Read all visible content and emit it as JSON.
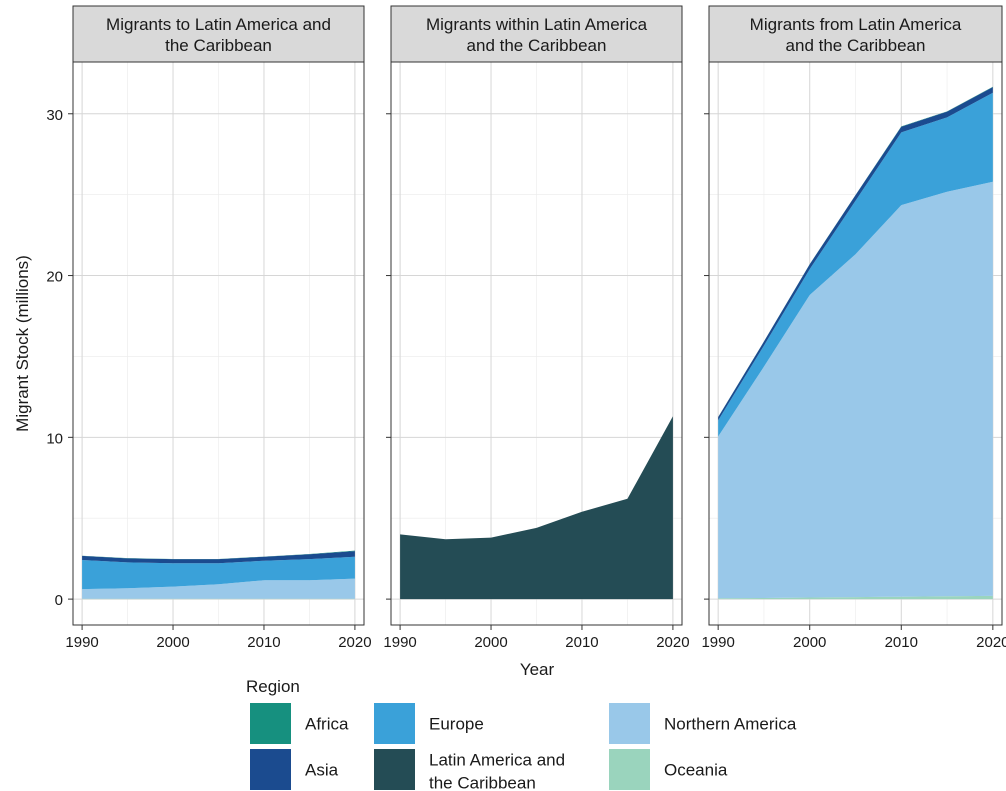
{
  "chart_data": {
    "type": "area",
    "stacked": true,
    "facets": [
      {
        "title_lines": [
          "Migrants to Latin America and",
          "the Caribbean"
        ],
        "x": [
          1990,
          1995,
          2000,
          2005,
          2010,
          2015,
          2020
        ],
        "series": [
          {
            "name": "Oceania",
            "values": [
              0.02,
              0.02,
              0.02,
              0.02,
              0.02,
              0.02,
              0.02
            ]
          },
          {
            "name": "Northern America",
            "values": [
              0.6,
              0.65,
              0.75,
              0.9,
              1.15,
              1.15,
              1.25
            ]
          },
          {
            "name": "Latin America and the Caribbean",
            "values": [
              0,
              0,
              0,
              0,
              0,
              0,
              0
            ]
          },
          {
            "name": "Europe",
            "values": [
              1.8,
              1.6,
              1.45,
              1.3,
              1.2,
              1.3,
              1.35
            ]
          },
          {
            "name": "Asia",
            "values": [
              0.25,
              0.25,
              0.25,
              0.25,
              0.25,
              0.3,
              0.35
            ]
          },
          {
            "name": "Africa",
            "values": [
              0.01,
              0.01,
              0.01,
              0.01,
              0.01,
              0.02,
              0.03
            ]
          }
        ]
      },
      {
        "title_lines": [
          "Migrants within Latin America",
          "and the Caribbean"
        ],
        "x": [
          1990,
          1995,
          2000,
          2005,
          2010,
          2015,
          2020
        ],
        "series": [
          {
            "name": "Oceania",
            "values": [
              0,
              0,
              0,
              0,
              0,
              0,
              0
            ]
          },
          {
            "name": "Northern America",
            "values": [
              0,
              0,
              0,
              0,
              0,
              0,
              0
            ]
          },
          {
            "name": "Latin America and the Caribbean",
            "values": [
              4.0,
              3.7,
              3.8,
              4.4,
              5.4,
              6.2,
              11.3
            ]
          },
          {
            "name": "Europe",
            "values": [
              0,
              0,
              0,
              0,
              0,
              0,
              0
            ]
          },
          {
            "name": "Asia",
            "values": [
              0,
              0,
              0,
              0,
              0,
              0,
              0
            ]
          },
          {
            "name": "Africa",
            "values": [
              0,
              0,
              0,
              0,
              0,
              0,
              0
            ]
          }
        ]
      },
      {
        "title_lines": [
          "Migrants from Latin America",
          "and the Caribbean"
        ],
        "x": [
          1990,
          1995,
          2000,
          2005,
          2010,
          2015,
          2020
        ],
        "series": [
          {
            "name": "Oceania",
            "values": [
              0.05,
              0.07,
              0.1,
              0.12,
              0.15,
              0.18,
              0.2
            ]
          },
          {
            "name": "Northern America",
            "values": [
              10.0,
              14.3,
              18.7,
              21.2,
              24.2,
              25.0,
              25.6
            ]
          },
          {
            "name": "Latin America and the Caribbean",
            "values": [
              0,
              0,
              0,
              0,
              0,
              0,
              0
            ]
          },
          {
            "name": "Europe",
            "values": [
              1.0,
              1.3,
              1.6,
              3.3,
              4.5,
              4.6,
              5.5
            ]
          },
          {
            "name": "Asia",
            "values": [
              0.2,
              0.25,
              0.3,
              0.35,
              0.35,
              0.35,
              0.35
            ]
          },
          {
            "name": "Africa",
            "values": [
              0.01,
              0.01,
              0.01,
              0.01,
              0.02,
              0.02,
              0.02
            ]
          }
        ]
      }
    ],
    "ylabel": "Migrant Stock (millions)",
    "xlabel": "Year",
    "ylim": [
      -1.6,
      33.2
    ],
    "xlim": [
      1989,
      2021
    ],
    "yticks": [
      0,
      10,
      20,
      30
    ],
    "xticks": [
      1990,
      2000,
      2010,
      2020
    ],
    "grid": true,
    "legend": {
      "title": "Region",
      "placement": "bottom",
      "items": [
        {
          "lines": [
            "Africa"
          ],
          "color": "#16907f"
        },
        {
          "lines": [
            "Asia"
          ],
          "color": "#1b4b8f"
        },
        {
          "lines": [
            "Europe"
          ],
          "color": "#3aa1d9"
        },
        {
          "lines": [
            "Latin America and",
            "the Caribbean"
          ],
          "color": "#244c55"
        },
        {
          "lines": [
            "Northern America"
          ],
          "color": "#99c8e9"
        },
        {
          "lines": [
            "Oceania"
          ],
          "color": "#9ad4bd"
        }
      ]
    },
    "colors": {
      "Africa": "#16907f",
      "Asia": "#1b4b8f",
      "Europe": "#3aa1d9",
      "Latin America and the Caribbean": "#244c55",
      "Northern America": "#99c8e9",
      "Oceania": "#9ad4bd"
    }
  }
}
